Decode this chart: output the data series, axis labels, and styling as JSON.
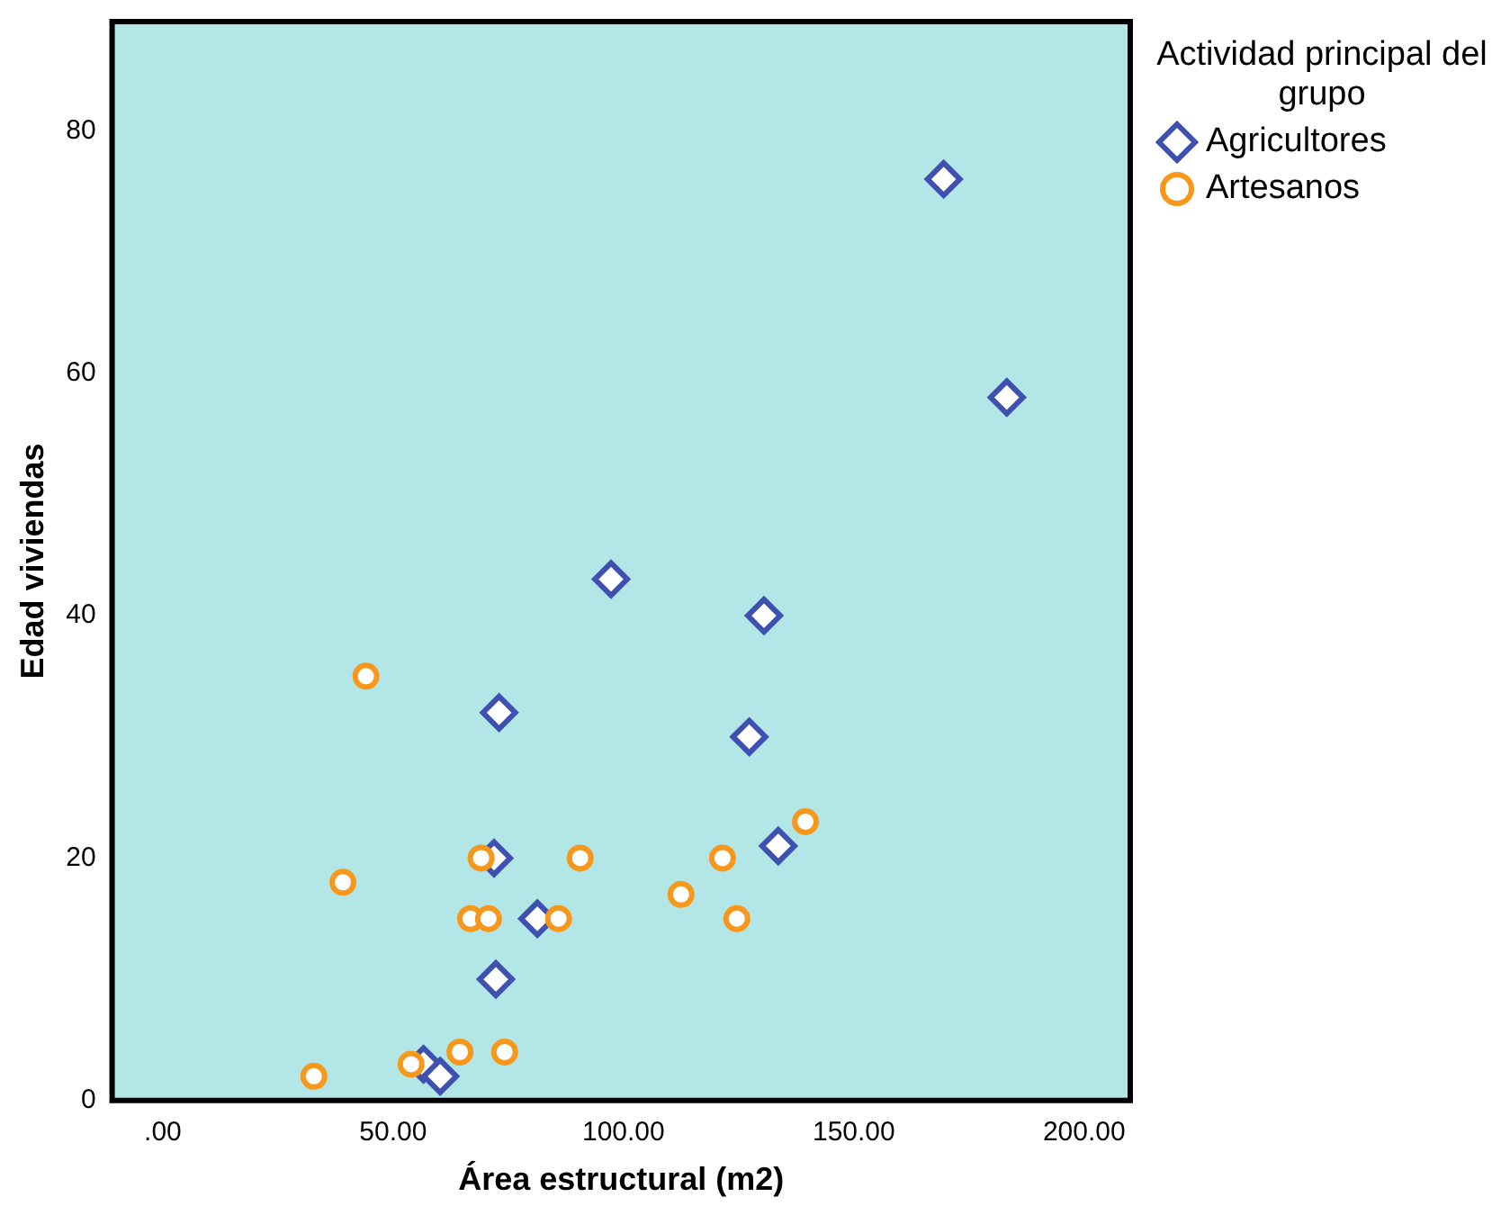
{
  "chart_data": {
    "type": "scatter",
    "xlabel": "Área estructural (m2)",
    "ylabel": "Edad viviendas",
    "legend_title": "Actividad principal del grupo",
    "legend": "right",
    "grid": false,
    "xlim": [
      -11,
      210
    ],
    "xticks": [
      {
        "value": 0,
        "label": ".00"
      },
      {
        "value": 50,
        "label": "50.00"
      },
      {
        "value": 100,
        "label": "100.00"
      },
      {
        "value": 150,
        "label": "150.00"
      },
      {
        "value": 200,
        "label": "200.00"
      }
    ],
    "ylim": [
      0,
      89
    ],
    "yticks": [
      0,
      20,
      40,
      60,
      80
    ],
    "series": [
      {
        "name": "Agricultores",
        "color": "#3f51b0",
        "marker": "diamond",
        "x": [
          169.5,
          183.2,
          97.3,
          130.5,
          73,
          127.3,
          133.6,
          71.9,
          81.3,
          72.3,
          56.6,
          60.2
        ],
        "values": [
          76,
          58,
          43,
          40,
          32,
          30,
          21,
          20,
          15,
          10,
          3,
          2
        ]
      },
      {
        "name": "Artesanos",
        "color": "#f7981d",
        "marker": "circle",
        "x": [
          44.1,
          39.1,
          69.1,
          90.6,
          121.5,
          139.5,
          112.5,
          124.6,
          66.8,
          70.7,
          85.9,
          53.9,
          64.5,
          74.2,
          32.8
        ],
        "values": [
          35,
          18,
          20,
          20,
          20,
          23,
          17,
          15,
          15,
          15,
          15,
          3,
          4,
          4,
          2
        ]
      }
    ]
  }
}
